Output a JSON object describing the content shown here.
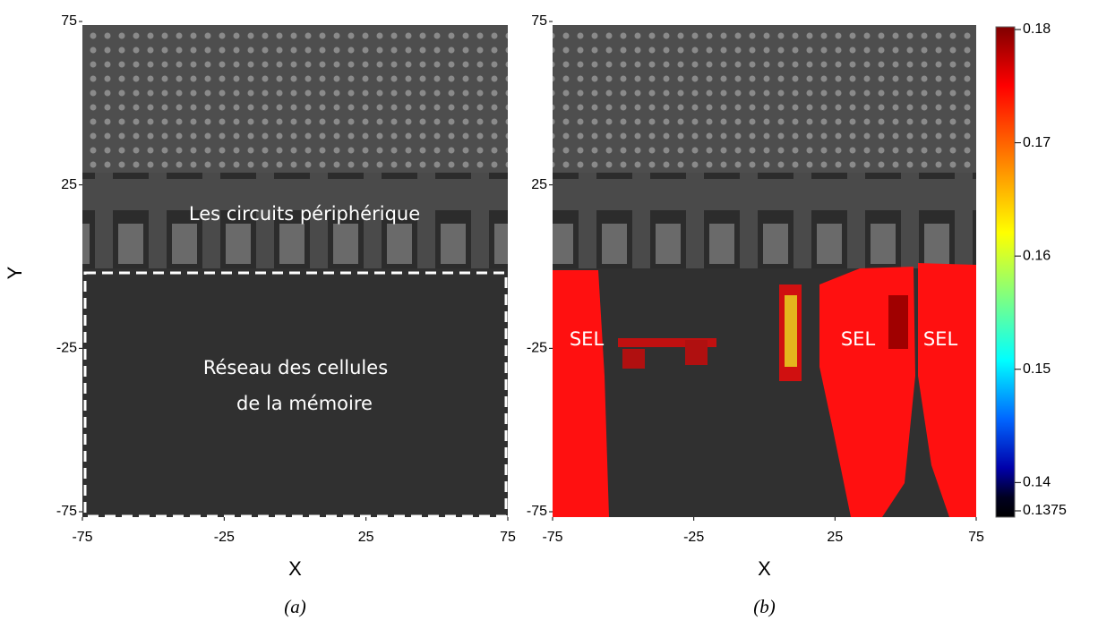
{
  "chart_data": [
    {
      "type": "image",
      "xlabel": "X",
      "ylabel": "Y",
      "caption": "(a)",
      "xlim": [
        -75,
        75
      ],
      "ylim": [
        -75,
        75
      ],
      "xticks": [
        -75,
        -25,
        25,
        75
      ],
      "yticks": [
        -75,
        -25,
        25,
        75
      ],
      "annotations": [
        "Les circuits périphérique",
        "Réseau des cellules",
        "de la mémoire"
      ]
    },
    {
      "type": "image",
      "xlabel": "X",
      "caption": "(b)",
      "xlim": [
        -75,
        75
      ],
      "ylim": [
        -75,
        75
      ],
      "xticks": [
        -75,
        -25,
        25,
        75
      ],
      "yticks": [
        -75,
        -25,
        25,
        75
      ],
      "annotations": [
        "SEL",
        "SEL",
        "SEL"
      ],
      "colorbar": {
        "lim": [
          0.1375,
          0.18
        ],
        "ticks": [
          0.18,
          0.17,
          0.16,
          0.15,
          0.14,
          0.1375
        ]
      }
    }
  ]
}
